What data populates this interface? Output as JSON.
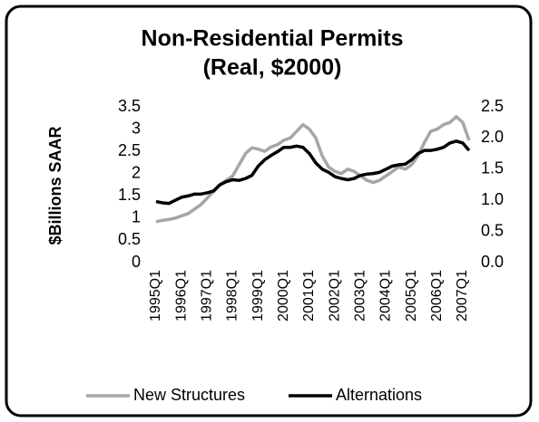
{
  "chart_data": {
    "type": "line",
    "title": "Non-Residential  Permits",
    "subtitle": "(Real, $2000)",
    "y_label": "$Billions SAAR",
    "categories": [
      "1995Q1",
      null,
      null,
      null,
      "1996Q1",
      null,
      null,
      null,
      "1997Q1",
      null,
      null,
      null,
      "1998Q1",
      null,
      null,
      null,
      "1999Q1",
      null,
      null,
      null,
      "2000Q1",
      null,
      null,
      null,
      "2001Q1",
      null,
      null,
      null,
      "2002Q1",
      null,
      null,
      null,
      "2003Q1",
      null,
      null,
      null,
      "2004Q1",
      null,
      null,
      null,
      "2005Q1",
      null,
      null,
      null,
      "2006Q1",
      null,
      null,
      null,
      "2007Q1",
      null
    ],
    "series": [
      {
        "name": "New Structures",
        "color": "#a6a6a6",
        "axis": "y",
        "values": [
          0.92,
          0.95,
          0.97,
          1.0,
          1.05,
          1.1,
          1.2,
          1.3,
          1.45,
          1.6,
          1.75,
          1.85,
          1.95,
          2.2,
          2.45,
          2.58,
          2.55,
          2.5,
          2.6,
          2.65,
          2.75,
          2.8,
          2.95,
          3.1,
          3.0,
          2.8,
          2.4,
          2.15,
          2.05,
          2.0,
          2.1,
          2.05,
          1.95,
          1.85,
          1.8,
          1.85,
          1.95,
          2.05,
          2.15,
          2.1,
          2.2,
          2.4,
          2.7,
          2.95,
          3.0,
          3.1,
          3.15,
          3.28,
          3.15,
          2.75
        ]
      },
      {
        "name": "Alternations",
        "color": "#000000",
        "axis": "y2",
        "values": [
          0.98,
          0.96,
          0.95,
          1.0,
          1.05,
          1.07,
          1.1,
          1.1,
          1.12,
          1.15,
          1.25,
          1.3,
          1.33,
          1.32,
          1.35,
          1.4,
          1.55,
          1.65,
          1.72,
          1.78,
          1.85,
          1.85,
          1.87,
          1.85,
          1.75,
          1.6,
          1.5,
          1.45,
          1.38,
          1.35,
          1.33,
          1.35,
          1.4,
          1.42,
          1.43,
          1.45,
          1.5,
          1.55,
          1.57,
          1.58,
          1.65,
          1.75,
          1.8,
          1.8,
          1.82,
          1.85,
          1.92,
          1.95,
          1.92,
          1.8
        ]
      }
    ],
    "ylim": [
      0,
      3.5
    ],
    "yticks": [
      0,
      0.5,
      1,
      1.5,
      2,
      2.5,
      3,
      3.5
    ],
    "y2lim": [
      0,
      2.5
    ],
    "y2ticks": [
      {
        "value": 0,
        "label": "0.0"
      },
      0.5,
      {
        "value": 1,
        "label": "1.0"
      },
      1.5,
      {
        "value": 2,
        "label": "2.0"
      },
      2.5
    ],
    "grid": false,
    "legend": "bottom"
  }
}
